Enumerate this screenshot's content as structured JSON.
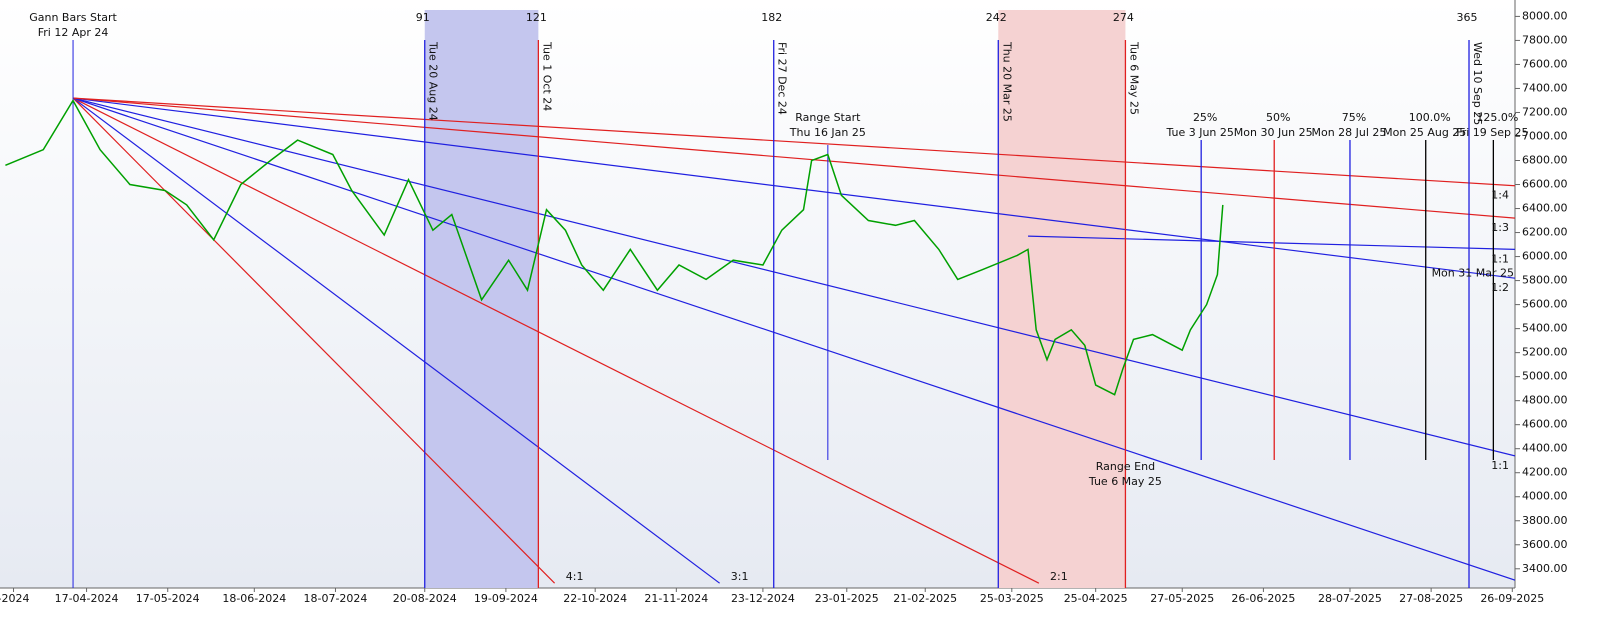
{
  "chart_data": {
    "type": "gann",
    "xlim": [
      "2024-03-16",
      "2025-09-27"
    ],
    "ylim": [
      3240,
      8070
    ],
    "yticks": [
      {
        "value": 8000,
        "label": "8000.00"
      },
      {
        "value": 7800,
        "label": "7800.00"
      },
      {
        "value": 7600,
        "label": "7600.00"
      },
      {
        "value": 7400,
        "label": "7400.00"
      },
      {
        "value": 7200,
        "label": "7200.00"
      },
      {
        "value": 7000,
        "label": "7000.00"
      },
      {
        "value": 6800,
        "label": "6800.00"
      },
      {
        "value": 6600,
        "label": "6600.00"
      },
      {
        "value": 6400,
        "label": "6400.00"
      },
      {
        "value": 6200,
        "label": "6200.00"
      },
      {
        "value": 6000,
        "label": "6000.00"
      },
      {
        "value": 5800,
        "label": "5800.00"
      },
      {
        "value": 5600,
        "label": "5600.00"
      },
      {
        "value": 5400,
        "label": "5400.00"
      },
      {
        "value": 5200,
        "label": "5200.00"
      },
      {
        "value": 5000,
        "label": "5000.00"
      },
      {
        "value": 4800,
        "label": "4800.00"
      },
      {
        "value": 4600,
        "label": "4600.00"
      },
      {
        "value": 4400,
        "label": "4400.00"
      },
      {
        "value": 4200,
        "label": "4200.00"
      },
      {
        "value": 4000,
        "label": "4000.00"
      },
      {
        "value": 3800,
        "label": "3800.00"
      },
      {
        "value": 3600,
        "label": "3600.00"
      },
      {
        "value": 3400,
        "label": "3400.00"
      }
    ],
    "xticks": [
      {
        "value": "2024-03-21",
        "label": "-2024"
      },
      {
        "value": "2024-04-17",
        "label": "17-04-2024"
      },
      {
        "value": "2024-05-17",
        "label": "17-05-2024"
      },
      {
        "value": "2024-06-18",
        "label": "18-06-2024"
      },
      {
        "value": "2024-07-18",
        "label": "18-07-2024"
      },
      {
        "value": "2024-08-20",
        "label": "20-08-2024"
      },
      {
        "value": "2024-09-19",
        "label": "19-09-2024"
      },
      {
        "value": "2024-10-22",
        "label": "22-10-2024"
      },
      {
        "value": "2024-11-21",
        "label": "21-11-2024"
      },
      {
        "value": "2024-12-23",
        "label": "23-12-2024"
      },
      {
        "value": "2025-01-23",
        "label": "23-01-2025"
      },
      {
        "value": "2025-02-21",
        "label": "21-02-2025"
      },
      {
        "value": "2025-03-25",
        "label": "25-03-2025"
      },
      {
        "value": "2025-04-25",
        "label": "25-04-2025"
      },
      {
        "value": "2025-05-27",
        "label": "27-05-2025"
      },
      {
        "value": "2025-06-26",
        "label": "26-06-2025"
      },
      {
        "value": "2025-07-28",
        "label": "28-07-2025"
      },
      {
        "value": "2025-08-27",
        "label": "27-08-2025"
      },
      {
        "value": "2025-09-26",
        "label": "26-09-2025"
      }
    ],
    "up_color": "#00a000",
    "x": [
      "2024-03-18",
      "2024-04-01",
      "2024-04-12",
      "2024-04-22",
      "2024-05-03",
      "2024-05-16",
      "2024-05-24",
      "2024-06-03",
      "2024-06-13",
      "2024-06-24",
      "2024-07-04",
      "2024-07-17",
      "2024-07-24",
      "2024-08-05",
      "2024-08-14",
      "2024-08-23",
      "2024-08-30",
      "2024-09-10",
      "2024-09-20",
      "2024-09-27",
      "2024-10-04",
      "2024-10-11",
      "2024-10-17",
      "2024-10-25",
      "2024-11-04",
      "2024-11-14",
      "2024-11-22",
      "2024-12-02",
      "2024-12-12",
      "2024-12-23",
      "2024-12-30",
      "2025-01-07",
      "2025-01-10",
      "2025-01-16",
      "2025-01-21",
      "2025-01-31",
      "2025-02-10",
      "2025-02-17",
      "2025-02-26",
      "2025-03-05",
      "2025-03-14",
      "2025-03-27",
      "2025-03-31",
      "2025-04-03",
      "2025-04-07",
      "2025-04-10",
      "2025-04-16",
      "2025-04-21",
      "2025-04-25",
      "2025-05-02",
      "2025-05-05",
      "2025-05-09",
      "2025-05-16",
      "2025-05-27",
      "2025-05-30",
      "2025-06-05",
      "2025-06-09",
      "2025-06-11"
    ],
    "values": [
      6760,
      6890,
      7300,
      6890,
      6600,
      6550,
      6430,
      6140,
      6600,
      6800,
      6970,
      6850,
      6550,
      6180,
      6640,
      6220,
      6350,
      5640,
      5970,
      5720,
      6390,
      6220,
      5930,
      5720,
      6060,
      5720,
      5930,
      5810,
      5970,
      5930,
      6220,
      6390,
      6800,
      6850,
      6510,
      6300,
      6260,
      6300,
      6060,
      5810,
      5890,
      6010,
      6060,
      5390,
      5140,
      5310,
      5390,
      5260,
      4930,
      4850,
      5060,
      5310,
      5350,
      5220,
      5390,
      5600,
      5850,
      6430
    ],
    "gann_start": {
      "title": "Gann Bars Start",
      "label": "Fri 12 Apr 24",
      "date": "2024-04-12",
      "color": "#2020e0"
    },
    "shaded": [
      {
        "start": "2024-08-20",
        "end": "2024-10-01",
        "color": "#c4c6ee"
      },
      {
        "start": "2025-03-20",
        "end": "2025-05-06",
        "color": "#f5d2d2"
      }
    ],
    "cycles": [
      {
        "count": 91,
        "label": "Tue 20 Aug 24",
        "date": "2024-08-20",
        "color": "#2020e0"
      },
      {
        "count": 121,
        "label": "Tue 1 Oct 24",
        "date": "2024-10-01",
        "color": "#e02020"
      },
      {
        "count": 182,
        "label": "Fri 27 Dec 24",
        "date": "2024-12-27",
        "color": "#2020e0"
      },
      {
        "count": 242,
        "label": "Thu 20 Mar 25",
        "date": "2025-03-20",
        "color": "#2020e0"
      },
      {
        "count": 274,
        "label": "Tue 6 May 25",
        "date": "2025-05-06",
        "color": "#e02020"
      },
      {
        "count": 365,
        "label": "Wed 10 Sep 25",
        "date": "2025-09-10",
        "color": "#2020e0"
      }
    ],
    "range_start": {
      "title": "Range Start",
      "label": "Thu 16 Jan 25",
      "date": "2025-01-16",
      "color": "#2020e0"
    },
    "range_end": {
      "title": "Range End",
      "label": "Tue 6 May 25",
      "date": "2025-05-06"
    },
    "projections": [
      {
        "pct": "25%",
        "label": "Tue 3 Jun 25",
        "date": "2025-06-03",
        "color": "#2020e0"
      },
      {
        "pct": "50%",
        "label": "Mon 30 Jun 25",
        "date": "2025-06-30",
        "color": "#e02020"
      },
      {
        "pct": "75%",
        "label": "Mon 28 Jul 25",
        "date": "2025-07-28",
        "color": "#2020e0"
      },
      {
        "pct": "100.0%",
        "label": "Mon 25 Aug 25",
        "date": "2025-08-25",
        "color": "#000000"
      },
      {
        "pct": "125.0%",
        "label": "Fri 19 Sep 25",
        "date": "2025-09-19",
        "color": "#000000"
      }
    ],
    "fans": [
      {
        "start_date": "2024-04-12",
        "start_price": 7320,
        "end_date": "2024-10-07",
        "end_price": 3280,
        "color": "#e02020",
        "label": "4:1"
      },
      {
        "start_date": "2024-04-12",
        "start_price": 7320,
        "end_date": "2024-12-07",
        "end_price": 3280,
        "color": "#2020e0",
        "label": "3:1"
      },
      {
        "start_date": "2024-04-12",
        "start_price": 7320,
        "end_date": "2025-04-04",
        "end_price": 3280,
        "color": "#e02020",
        "label": "2:1"
      },
      {
        "start_date": "2024-04-12",
        "start_price": 7320,
        "end_date": "2025-09-27",
        "end_price": 3305,
        "color": "#2020e0"
      },
      {
        "start_date": "2024-04-12",
        "start_price": 7320,
        "end_date": "2025-09-27",
        "end_price": 4340,
        "color": "#2020e0",
        "label": "1:1"
      },
      {
        "start_date": "2024-04-12",
        "start_price": 7320,
        "end_date": "2025-09-27",
        "end_price": 5820,
        "color": "#2020e0",
        "label": "1:2"
      },
      {
        "start_date": "2024-04-12",
        "start_price": 7320,
        "end_date": "2025-09-27",
        "end_price": 6320,
        "color": "#e02020",
        "label": "1:3"
      },
      {
        "start_date": "2024-04-12",
        "start_price": 7320,
        "end_date": "2025-09-27",
        "end_price": 6590,
        "color": "#e02020",
        "label": "1:4"
      },
      {
        "start_date": "2025-03-31",
        "start_price": 6170,
        "end_date": "2025-09-27",
        "end_price": 6060,
        "color": "#2020e0",
        "label": "1:1",
        "start_label": "Mon 31 Mar 25"
      }
    ]
  }
}
